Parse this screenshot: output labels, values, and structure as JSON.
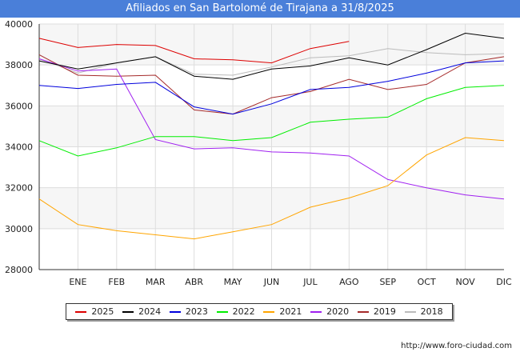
{
  "page": {
    "source_url": "http://www.foro-ciudad.com"
  },
  "chart_data": {
    "type": "line",
    "title": "Afiliados en San Bartolomé de Tirajana a 31/8/2025",
    "xlabel": "",
    "ylabel": "",
    "categories": [
      "",
      "ENE",
      "FEB",
      "MAR",
      "ABR",
      "MAY",
      "JUN",
      "JUL",
      "AGO",
      "SEP",
      "OCT",
      "NOV",
      "DIC"
    ],
    "ylim": [
      28000,
      40000
    ],
    "yticks": [
      28000,
      30000,
      32000,
      34000,
      36000,
      38000,
      40000
    ],
    "ytick_labels": [
      "28000",
      "30000",
      "32000",
      "34000",
      "36000",
      "38000",
      "40000"
    ],
    "grid": true,
    "legend_position": "bottom",
    "series": [
      {
        "name": "2025",
        "color": "#dd0000",
        "values": [
          39300,
          38850,
          39000,
          38950,
          38300,
          38250,
          38100,
          38800,
          39150,
          null,
          null,
          null,
          null
        ]
      },
      {
        "name": "2024",
        "color": "#000000",
        "values": [
          38200,
          37800,
          38100,
          38400,
          37450,
          37300,
          37800,
          37950,
          38350,
          38000,
          38750,
          39550,
          39300
        ]
      },
      {
        "name": "2023",
        "color": "#0000dd",
        "values": [
          37000,
          36850,
          37050,
          37150,
          35950,
          35600,
          36100,
          36800,
          36900,
          37200,
          37600,
          38100,
          38200
        ]
      },
      {
        "name": "2022",
        "color": "#00ee00",
        "values": [
          34300,
          33550,
          33950,
          34500,
          34500,
          34300,
          34450,
          35200,
          35350,
          35450,
          36350,
          36900,
          37000
        ]
      },
      {
        "name": "2021",
        "color": "#ffa500",
        "values": [
          31450,
          30200,
          29900,
          29700,
          29500,
          29850,
          30200,
          31050,
          31500,
          32100,
          33600,
          34450,
          34300
        ]
      },
      {
        "name": "2020",
        "color": "#a020f0",
        "values": [
          38300,
          37700,
          37800,
          34350,
          33900,
          33950,
          33750,
          33700,
          33550,
          32400,
          32000,
          31650,
          31450
        ]
      },
      {
        "name": "2019",
        "color": "#a52a2a",
        "values": [
          38500,
          37500,
          37450,
          37500,
          35800,
          35600,
          36400,
          36700,
          37300,
          36800,
          37050,
          38100,
          38400
        ]
      },
      {
        "name": "2018",
        "color": "#bbbbbb",
        "values": [
          38300,
          37600,
          38100,
          38400,
          37550,
          37500,
          37900,
          38350,
          38450,
          38800,
          38600,
          38500,
          38550
        ]
      }
    ]
  }
}
